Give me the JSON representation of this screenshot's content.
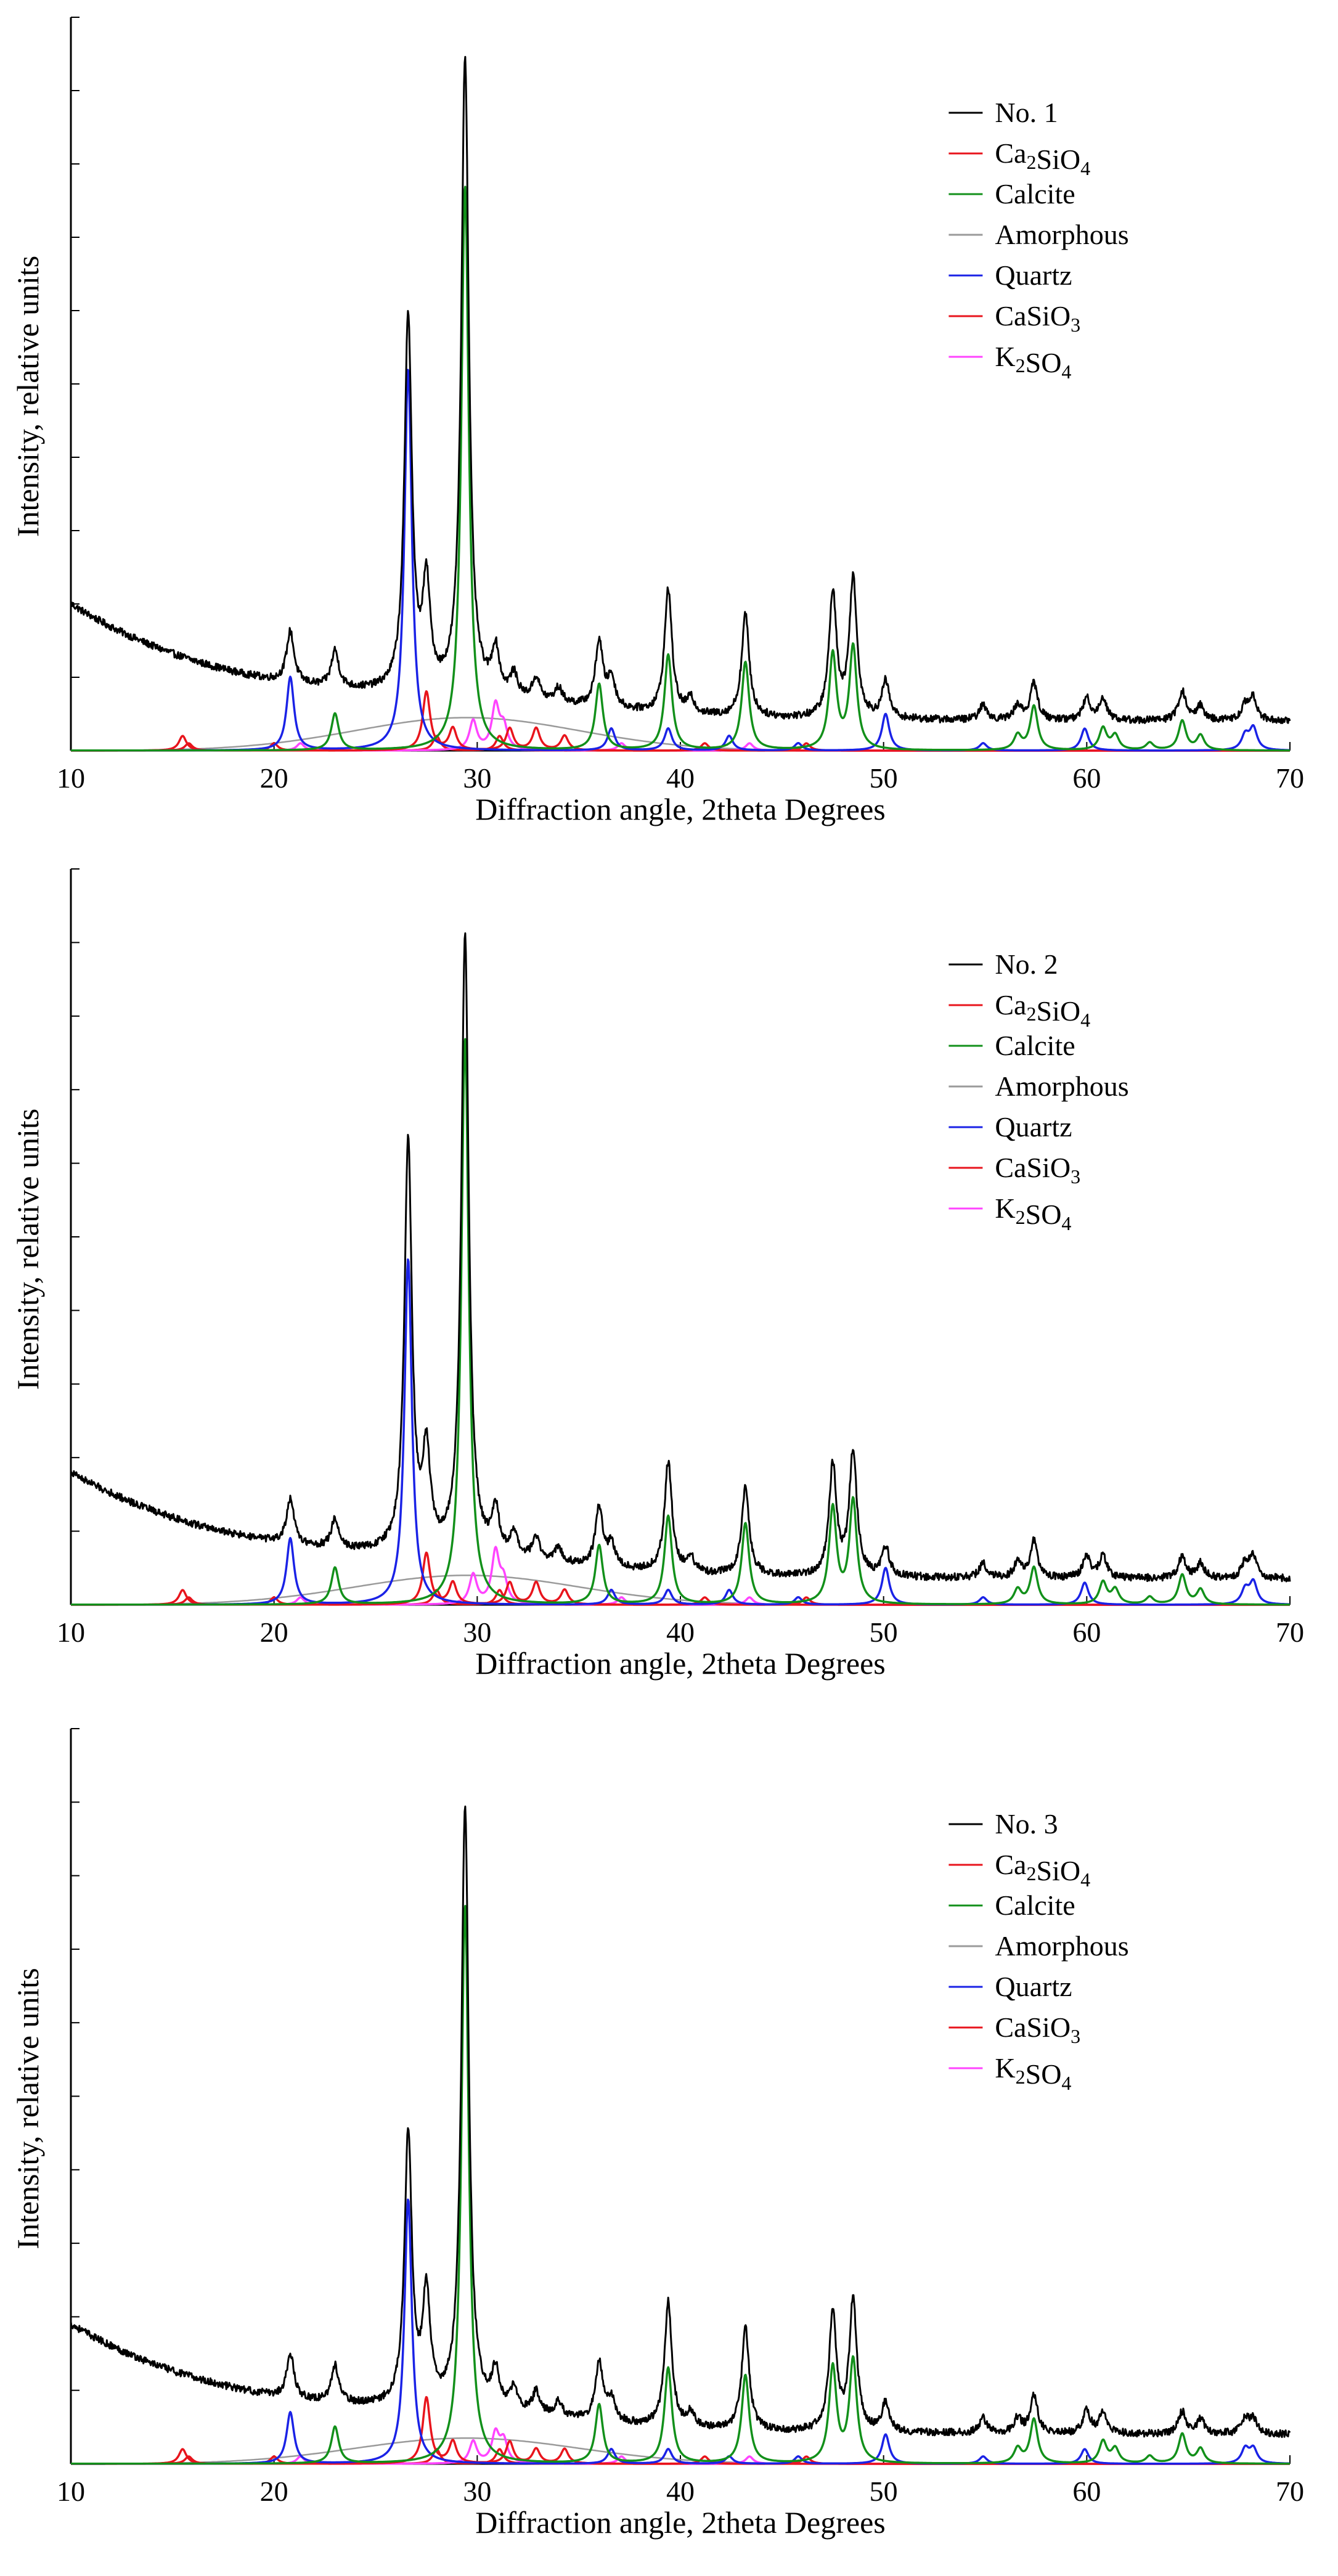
{
  "figure": {
    "description_free": true
  },
  "chart_data": [
    {
      "type": "line",
      "sample": "No. 1",
      "xlabel": "Diffraction angle, 2theta Degrees",
      "ylabel": "Intensity, relative units",
      "xlim": [
        10,
        70
      ],
      "ylim": [
        0,
        100
      ],
      "xticks": [
        "10",
        "20",
        "30",
        "40",
        "50",
        "60",
        "70"
      ],
      "legend_position": "top-right",
      "legend": [
        {
          "label": "No. 1",
          "color": "#000000"
        },
        {
          "label": "Ca2SiO4",
          "color": "#e8141c"
        },
        {
          "label": "Calcite",
          "color": "#12901a"
        },
        {
          "label": "Amorphous",
          "color": "#9a9a9a"
        },
        {
          "label": "Quartz",
          "color": "#1a22e6"
        },
        {
          "label": "CaSiO3",
          "color": "#e8141c"
        },
        {
          "label": "K2SO4",
          "color": "#ff44ff"
        }
      ],
      "baseline": {
        "start": 20,
        "mid": 7.5,
        "end": 4,
        "noise": 0.5
      },
      "peaks": {
        "sample": [
          [
            20.8,
            7
          ],
          [
            23.0,
            5
          ],
          [
            26.6,
            51
          ],
          [
            27.5,
            14
          ],
          [
            29.4,
            87
          ],
          [
            30.9,
            6
          ],
          [
            31.8,
            3
          ],
          [
            32.9,
            3
          ],
          [
            34.0,
            2
          ],
          [
            36.0,
            9
          ],
          [
            36.6,
            4
          ],
          [
            39.4,
            17
          ],
          [
            40.5,
            2
          ],
          [
            43.2,
            14
          ],
          [
            47.5,
            17
          ],
          [
            48.5,
            19
          ],
          [
            50.1,
            5
          ],
          [
            54.9,
            2
          ],
          [
            56.6,
            2
          ],
          [
            57.4,
            5
          ],
          [
            60.0,
            3
          ],
          [
            60.8,
            3
          ],
          [
            64.7,
            4
          ],
          [
            65.6,
            2
          ],
          [
            67.8,
            2
          ],
          [
            68.2,
            3
          ]
        ],
        "Calcite": [
          [
            23.0,
            5
          ],
          [
            29.4,
            77
          ],
          [
            36.0,
            9
          ],
          [
            39.4,
            13
          ],
          [
            43.2,
            12
          ],
          [
            47.5,
            13
          ],
          [
            48.5,
            14
          ],
          [
            56.6,
            2
          ],
          [
            57.4,
            6
          ],
          [
            60.8,
            3
          ],
          [
            61.4,
            2
          ],
          [
            63.1,
            1
          ],
          [
            64.7,
            4
          ],
          [
            65.6,
            2
          ]
        ],
        "Quartz": [
          [
            20.8,
            10
          ],
          [
            26.6,
            52
          ],
          [
            36.6,
            3
          ],
          [
            39.4,
            3
          ],
          [
            42.4,
            2
          ],
          [
            45.8,
            1
          ],
          [
            50.1,
            5
          ],
          [
            54.9,
            1
          ],
          [
            59.9,
            3
          ],
          [
            67.8,
            2
          ],
          [
            68.2,
            3
          ]
        ],
        "Ca2SiO4": [
          [
            15.5,
            2
          ],
          [
            27.5,
            8
          ],
          [
            28.8,
            3
          ],
          [
            31.6,
            3
          ],
          [
            32.9,
            3
          ],
          [
            34.3,
            2
          ],
          [
            41.2,
            1
          ]
        ],
        "CaSiO3": [
          [
            15.8,
            1
          ],
          [
            20.0,
            1
          ],
          [
            28.0,
            2
          ],
          [
            31.1,
            2
          ],
          [
            46.2,
            1
          ]
        ],
        "K2SO4": [
          [
            21.3,
            1
          ],
          [
            29.8,
            4
          ],
          [
            30.9,
            6
          ],
          [
            31.3,
            3
          ],
          [
            37.1,
            1
          ],
          [
            43.4,
            1
          ]
        ],
        "Amorphous": {
          "center": 29.5,
          "height": 4.5,
          "width": 5.5
        }
      }
    },
    {
      "type": "line",
      "sample": "No. 2",
      "xlabel": "Diffraction angle, 2theta Degrees",
      "ylabel": "Intensity, relative units",
      "xlim": [
        10,
        70
      ],
      "ylim": [
        0,
        100
      ],
      "xticks": [
        "10",
        "20",
        "30",
        "40",
        "50",
        "60",
        "70"
      ],
      "legend_position": "top-right",
      "legend": [
        {
          "label": "No. 2",
          "color": "#000000"
        },
        {
          "label": "Ca2SiO4",
          "color": "#e8141c"
        },
        {
          "label": "Calcite",
          "color": "#12901a"
        },
        {
          "label": "Amorphous",
          "color": "#9a9a9a"
        },
        {
          "label": "Quartz",
          "color": "#1a22e6"
        },
        {
          "label": "CaSiO3",
          "color": "#e8141c"
        },
        {
          "label": "K2SO4",
          "color": "#ff44ff"
        }
      ],
      "baseline": {
        "start": 18,
        "mid": 6.5,
        "end": 3.5,
        "noise": 0.5
      },
      "peaks": {
        "sample": [
          [
            20.8,
            6
          ],
          [
            23.0,
            4
          ],
          [
            26.6,
            56
          ],
          [
            27.5,
            13
          ],
          [
            29.4,
            84
          ],
          [
            30.9,
            6
          ],
          [
            31.8,
            3
          ],
          [
            32.9,
            3
          ],
          [
            34.0,
            2
          ],
          [
            36.0,
            8
          ],
          [
            36.6,
            3
          ],
          [
            39.4,
            15
          ],
          [
            40.5,
            2
          ],
          [
            43.2,
            12
          ],
          [
            47.5,
            15
          ],
          [
            48.5,
            17
          ],
          [
            50.1,
            4
          ],
          [
            54.9,
            2
          ],
          [
            56.6,
            2
          ],
          [
            57.4,
            5
          ],
          [
            60.0,
            3
          ],
          [
            60.8,
            3
          ],
          [
            64.7,
            3
          ],
          [
            65.6,
            2
          ],
          [
            67.8,
            2
          ],
          [
            68.2,
            3
          ]
        ],
        "Calcite": [
          [
            23.0,
            5
          ],
          [
            29.4,
            77
          ],
          [
            36.0,
            8
          ],
          [
            39.4,
            12
          ],
          [
            43.2,
            11
          ],
          [
            47.5,
            13
          ],
          [
            48.5,
            14
          ],
          [
            56.6,
            2
          ],
          [
            57.4,
            5
          ],
          [
            60.8,
            3
          ],
          [
            61.4,
            2
          ],
          [
            63.1,
            1
          ],
          [
            64.7,
            4
          ],
          [
            65.6,
            2
          ]
        ],
        "Quartz": [
          [
            20.8,
            9
          ],
          [
            26.6,
            47
          ],
          [
            36.6,
            2
          ],
          [
            39.4,
            2
          ],
          [
            42.4,
            2
          ],
          [
            45.8,
            1
          ],
          [
            50.1,
            5
          ],
          [
            54.9,
            1
          ],
          [
            59.9,
            3
          ],
          [
            67.8,
            2
          ],
          [
            68.2,
            3
          ]
        ],
        "Ca2SiO4": [
          [
            15.5,
            2
          ],
          [
            27.5,
            7
          ],
          [
            28.8,
            3
          ],
          [
            31.6,
            3
          ],
          [
            32.9,
            3
          ],
          [
            34.3,
            2
          ],
          [
            41.2,
            1
          ]
        ],
        "CaSiO3": [
          [
            15.8,
            1
          ],
          [
            20.0,
            1
          ],
          [
            28.0,
            2
          ],
          [
            31.1,
            2
          ],
          [
            46.2,
            1
          ]
        ],
        "K2SO4": [
          [
            21.3,
            1
          ],
          [
            29.8,
            4
          ],
          [
            30.9,
            7
          ],
          [
            31.3,
            3
          ],
          [
            37.1,
            1
          ],
          [
            43.4,
            1
          ]
        ],
        "Amorphous": {
          "center": 29.5,
          "height": 4,
          "width": 5.5
        }
      }
    },
    {
      "type": "line",
      "sample": "No. 3",
      "xlabel": "Diffraction angle, 2theta Degrees",
      "ylabel": "Intensity, relative units",
      "xlim": [
        10,
        70
      ],
      "ylim": [
        0,
        100
      ],
      "xticks": [
        "10",
        "20",
        "30",
        "40",
        "50",
        "60",
        "70"
      ],
      "legend_position": "top-right",
      "legend": [
        {
          "label": "No. 3",
          "color": "#000000"
        },
        {
          "label": "Ca2SiO4",
          "color": "#e8141c"
        },
        {
          "label": "Calcite",
          "color": "#12901a"
        },
        {
          "label": "Amorphous",
          "color": "#9a9a9a"
        },
        {
          "label": "Quartz",
          "color": "#1a22e6"
        },
        {
          "label": "CaSiO3",
          "color": "#e8141c"
        },
        {
          "label": "K2SO4",
          "color": "#ff44ff"
        }
      ],
      "baseline": {
        "start": 19,
        "mid": 7.5,
        "end": 4,
        "noise": 0.5
      },
      "peaks": {
        "sample": [
          [
            20.8,
            6
          ],
          [
            23.0,
            5
          ],
          [
            26.6,
            37
          ],
          [
            27.5,
            15
          ],
          [
            29.4,
            82
          ],
          [
            30.9,
            5
          ],
          [
            31.8,
            3
          ],
          [
            32.9,
            3
          ],
          [
            34.0,
            2
          ],
          [
            36.0,
            8
          ],
          [
            36.6,
            3
          ],
          [
            39.4,
            17
          ],
          [
            40.5,
            2
          ],
          [
            43.2,
            14
          ],
          [
            47.5,
            16
          ],
          [
            48.5,
            18
          ],
          [
            50.1,
            4
          ],
          [
            54.9,
            2
          ],
          [
            56.6,
            2
          ],
          [
            57.4,
            5
          ],
          [
            60.0,
            3
          ],
          [
            60.8,
            3
          ],
          [
            64.7,
            3
          ],
          [
            65.6,
            2
          ],
          [
            67.8,
            2
          ],
          [
            68.2,
            2
          ]
        ],
        "Calcite": [
          [
            23.0,
            5
          ],
          [
            29.4,
            76
          ],
          [
            36.0,
            8
          ],
          [
            39.4,
            13
          ],
          [
            43.2,
            12
          ],
          [
            47.5,
            13
          ],
          [
            48.5,
            14
          ],
          [
            56.6,
            2
          ],
          [
            57.4,
            6
          ],
          [
            60.8,
            3
          ],
          [
            61.4,
            2
          ],
          [
            63.1,
            1
          ],
          [
            64.7,
            4
          ],
          [
            65.6,
            2
          ]
        ],
        "Quartz": [
          [
            20.8,
            7
          ],
          [
            26.6,
            36
          ],
          [
            36.6,
            2
          ],
          [
            39.4,
            2
          ],
          [
            42.4,
            1
          ],
          [
            45.8,
            1
          ],
          [
            50.1,
            4
          ],
          [
            54.9,
            1
          ],
          [
            59.9,
            2
          ],
          [
            67.8,
            2
          ],
          [
            68.2,
            2
          ]
        ],
        "Ca2SiO4": [
          [
            15.5,
            2
          ],
          [
            27.5,
            9
          ],
          [
            28.8,
            3
          ],
          [
            31.6,
            3
          ],
          [
            32.9,
            2
          ],
          [
            34.3,
            2
          ],
          [
            41.2,
            1
          ]
        ],
        "CaSiO3": [
          [
            15.8,
            1
          ],
          [
            20.0,
            1
          ],
          [
            28.0,
            2
          ],
          [
            31.1,
            2
          ],
          [
            46.2,
            1
          ]
        ],
        "K2SO4": [
          [
            21.3,
            1
          ],
          [
            29.8,
            3
          ],
          [
            30.9,
            4
          ],
          [
            31.3,
            3
          ],
          [
            37.1,
            1
          ],
          [
            43.4,
            1
          ]
        ],
        "Amorphous": {
          "center": 29.5,
          "height": 3.5,
          "width": 5.5
        }
      }
    }
  ]
}
